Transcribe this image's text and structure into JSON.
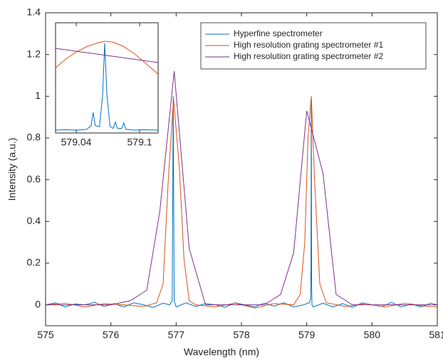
{
  "chart_data": [
    {
      "type": "line",
      "xlabel": "Wavelength (nm)",
      "ylabel": "Intensity (a.u.)",
      "xlim": [
        575,
        581
      ],
      "xticks": [
        575,
        576,
        577,
        578,
        579,
        580,
        581
      ],
      "ylim": [
        -0.1,
        1.4
      ],
      "yticks": [
        0,
        0.2,
        0.4,
        0.6,
        0.8,
        1,
        1.2,
        1.4
      ],
      "legend": "upper right",
      "series": [
        {
          "name": "Hyperfine spectrometer",
          "color": "#0072BD",
          "x": [
            575,
            575.15,
            575.3,
            575.45,
            575.6,
            575.75,
            575.9,
            576.05,
            576.2,
            576.35,
            576.5,
            576.65,
            576.8,
            576.9,
            576.94,
            576.955,
            576.97,
            577.0,
            577.15,
            577.3,
            577.45,
            577.6,
            577.75,
            577.9,
            578.05,
            578.2,
            578.35,
            578.5,
            578.65,
            578.8,
            578.95,
            579.04,
            579.06,
            579.065,
            579.07,
            579.075,
            579.08,
            579.1,
            579.25,
            579.4,
            579.55,
            579.7,
            579.85,
            580.0,
            580.15,
            580.3,
            580.45,
            580.6,
            580.75,
            580.9,
            581
          ],
          "values": [
            0.0,
            0.01,
            -0.01,
            0.005,
            0.0,
            0.012,
            -0.008,
            0.006,
            -0.01,
            0.01,
            0.0,
            -0.012,
            0.008,
            0.0,
            0.02,
            1.0,
            0.02,
            -0.01,
            0.01,
            -0.008,
            0.006,
            0.0,
            -0.012,
            0.01,
            0.0,
            -0.01,
            0.008,
            -0.006,
            0.01,
            -0.01,
            0.0,
            0.01,
            0.03,
            0.18,
            0.98,
            0.1,
            0.0,
            -0.01,
            0.008,
            -0.01,
            0.006,
            -0.012,
            0.01,
            0.0,
            -0.008,
            0.012,
            -0.01,
            0.005,
            -0.01,
            0.008,
            0.0
          ]
        },
        {
          "name": "High resolution grating spectrometer #1",
          "color": "#D95319",
          "x": [
            575,
            575.3,
            575.6,
            575.9,
            576.2,
            576.5,
            576.7,
            576.8,
            576.88,
            576.96,
            577.05,
            577.12,
            577.2,
            577.3,
            577.6,
            577.9,
            578.2,
            578.5,
            578.8,
            578.9,
            578.97,
            579.02,
            579.07,
            579.12,
            579.2,
            579.3,
            579.6,
            579.9,
            580.2,
            580.5,
            580.8,
            581
          ],
          "values": [
            0.0,
            0.008,
            -0.01,
            0.006,
            0.0,
            -0.008,
            0.01,
            0.1,
            0.6,
            0.99,
            0.65,
            0.22,
            0.02,
            0.0,
            -0.01,
            0.008,
            -0.015,
            0.006,
            0.0,
            0.05,
            0.3,
            0.8,
            1.0,
            0.6,
            0.1,
            0.01,
            -0.008,
            0.006,
            -0.01,
            0.008,
            -0.006,
            -0.01
          ]
        },
        {
          "name": "High resolution grating spectrometer #2",
          "color": "#7E2F8E",
          "x": [
            575,
            576.0,
            576.3,
            576.55,
            576.75,
            576.97,
            577.2,
            577.45,
            578.35,
            578.6,
            578.8,
            579.0,
            579.25,
            579.45,
            579.7,
            581
          ],
          "values": [
            0.0,
            0.0,
            0.02,
            0.07,
            0.45,
            1.12,
            0.27,
            0.0,
            0.0,
            0.05,
            0.25,
            0.93,
            0.63,
            0.05,
            0.0,
            0.0
          ]
        }
      ]
    },
    {
      "type": "line",
      "xlim": [
        579.0204,
        579.1175
      ],
      "xticks": [
        579.04,
        579.1
      ],
      "ylim": [
        -0.032,
        1.208
      ],
      "series": [
        {
          "color": "#0072BD",
          "x": [
            579.0204,
            579.03,
            579.04,
            579.05,
            579.054,
            579.056,
            579.058,
            579.062,
            579.065,
            579.0669,
            579.069,
            579.072,
            579.075,
            579.077,
            579.079,
            579.083,
            579.085,
            579.087,
            579.095,
            579.105,
            579.1175
          ],
          "values": [
            0.0,
            0.005,
            0.0,
            0.01,
            0.05,
            0.2,
            0.05,
            0.04,
            0.4,
            0.98,
            0.4,
            0.04,
            0.02,
            0.09,
            0.02,
            0.02,
            0.08,
            0.01,
            0.0,
            0.005,
            0.0
          ]
        },
        {
          "color": "#D95319",
          "x": [
            579.0204,
            579.03,
            579.04,
            579.05,
            579.06,
            579.067,
            579.075,
            579.085,
            579.095,
            579.105,
            579.1175
          ],
          "values": [
            0.7,
            0.8,
            0.88,
            0.94,
            0.98,
            1.0,
            0.99,
            0.94,
            0.86,
            0.76,
            0.63
          ]
        },
        {
          "color": "#7E2F8E",
          "x": [
            579.0204,
            579.1175
          ],
          "values": [
            0.92,
            0.76
          ]
        }
      ]
    }
  ]
}
